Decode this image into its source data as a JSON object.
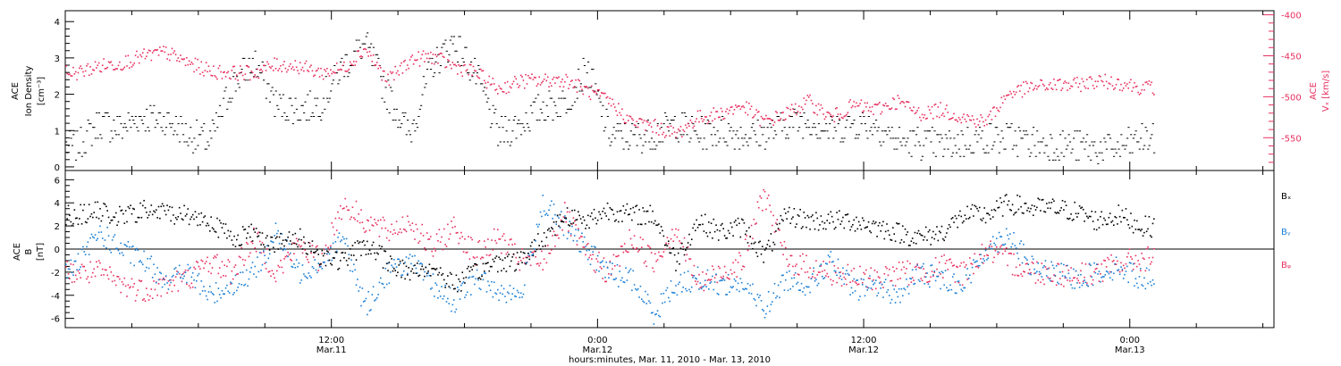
{
  "colors": {
    "density": "#000000",
    "speed": "#e8305f",
    "bx": "#000000",
    "by": "#1a7fd6",
    "bz": "#e8305f",
    "frame": "#000000",
    "background": "#ffffff"
  },
  "x_axis": {
    "label": "hours:minutes, Mar. 11, 2010 - Mar. 13, 2010",
    "ticks": [
      {
        "hours": 12,
        "time": "12:00",
        "date": "Mar.11"
      },
      {
        "hours": 24,
        "time": "0:00",
        "date": "Mar.12"
      },
      {
        "hours": 36,
        "time": "12:00",
        "date": "Mar.12"
      },
      {
        "hours": 48,
        "time": "0:00",
        "date": "Mar.13"
      }
    ]
  },
  "top_panel": {
    "left_label": [
      "ACE",
      "Ion Density",
      "[cm⁻³]"
    ],
    "right_label": [
      "ACE",
      "Vₓ [km/s]"
    ]
  },
  "bottom_panel": {
    "left_label": [
      "ACE",
      "B",
      "[nT]"
    ],
    "legend": [
      "Bₓ",
      "Bᵧ",
      "Bᵩ"
    ]
  },
  "chart_data": [
    {
      "type": "scatter",
      "title": "",
      "xlabel": "hours:minutes, Mar. 11, 2010 - Mar. 13, 2010",
      "xlim": [
        0,
        54.5
      ],
      "xticks": [
        12,
        24,
        36,
        48
      ],
      "ylabel": "ACE Ion Density [cm-3]",
      "ylim": [
        -0.1,
        4.3
      ],
      "yticks": [
        0,
        1,
        2,
        3,
        4
      ],
      "y2label": "ACE Vx [km/s]",
      "y2lim": [
        -590,
        -395
      ],
      "y2ticks": [
        -400,
        -450,
        -500,
        -550
      ],
      "grid": false,
      "series": [
        {
          "name": "",
          "axis": "left",
          "color": "#000000",
          "x": [
            0.5,
            1.5,
            2.5,
            3.5,
            4.5,
            5.5,
            6.5,
            7.5,
            8.5,
            9.5,
            10.5,
            11.5,
            12.5,
            13.5,
            14.5,
            15.5,
            16.5,
            17.5,
            18.5,
            19.5,
            20.5,
            21.5,
            22.5,
            23.5,
            24.5,
            25.5,
            26.5,
            27.5,
            28.5,
            29.5,
            30.5,
            31.5,
            32.5,
            33.5,
            34.5,
            35.5,
            36.5,
            37.5,
            38.5,
            39.5,
            40.5,
            41.5,
            42.5,
            43.5,
            44.5,
            45.5,
            46.5,
            47.5,
            48.5
          ],
          "y": [
            0.6,
            1.2,
            1.1,
            1.4,
            1.3,
            0.9,
            0.7,
            2.3,
            2.9,
            1.7,
            1.6,
            1.8,
            2.8,
            3.4,
            2.0,
            0.9,
            2.8,
            3.5,
            2.5,
            0.9,
            1.2,
            1.7,
            1.8,
            2.7,
            0.9,
            0.8,
            0.9,
            1.2,
            0.9,
            1.0,
            0.9,
            0.9,
            1.2,
            1.3,
            1.0,
            1.2,
            1.2,
            0.7,
            0.7,
            0.6,
            0.7,
            0.8,
            0.8,
            0.7,
            0.6,
            0.6,
            0.5,
            0.5,
            0.8
          ]
        },
        {
          "name": "",
          "axis": "right",
          "color": "#e8305f",
          "x": [
            0.5,
            1.5,
            2.5,
            3.5,
            4.5,
            5.5,
            6.5,
            7.5,
            8.5,
            9.5,
            10.5,
            11.5,
            12.5,
            13.5,
            14.5,
            15.5,
            16.5,
            17.5,
            18.5,
            19.5,
            20.5,
            21.5,
            22.5,
            23.5,
            24.5,
            25.5,
            26.5,
            27.5,
            28.5,
            29.5,
            30.5,
            31.5,
            32.5,
            33.5,
            34.5,
            35.5,
            36.5,
            37.5,
            38.5,
            39.5,
            40.5,
            41.5,
            42.5,
            43.5,
            44.5,
            45.5,
            46.5,
            47.5,
            48.5
          ],
          "y": [
            -470,
            -462,
            -458,
            -450,
            -445,
            -458,
            -468,
            -470,
            -470,
            -460,
            -462,
            -470,
            -465,
            -440,
            -480,
            -455,
            -450,
            -462,
            -470,
            -490,
            -480,
            -480,
            -478,
            -492,
            -505,
            -530,
            -535,
            -545,
            -525,
            -520,
            -510,
            -530,
            -520,
            -505,
            -525,
            -510,
            -515,
            -505,
            -520,
            -515,
            -525,
            -530,
            -495,
            -488,
            -485,
            -485,
            -480,
            -482,
            -488
          ]
        }
      ]
    },
    {
      "type": "scatter",
      "title": "",
      "xlabel": "hours:minutes, Mar. 11, 2010 - Mar. 13, 2010",
      "xlim": [
        0,
        54.5
      ],
      "xticks": [
        12,
        24,
        36,
        48
      ],
      "ylabel": "ACE B [nT]",
      "ylim": [
        -6.8,
        6.8
      ],
      "yticks": [
        -6,
        -4,
        -2,
        0,
        2,
        4,
        6
      ],
      "grid": false,
      "legend_position": "right",
      "series": [
        {
          "name": "Bx",
          "color": "#000000",
          "x": [
            0.5,
            1.5,
            2.5,
            3.5,
            4.5,
            5.5,
            6.5,
            7.5,
            8.5,
            9.5,
            10.5,
            11.5,
            12.5,
            13.5,
            14.5,
            15.5,
            16.5,
            17.5,
            18.5,
            19.5,
            20.5,
            21.5,
            22.5,
            23.5,
            24.5,
            25.5,
            26.5,
            27.5,
            28.5,
            29.5,
            30.5,
            31.5,
            32.5,
            33.5,
            34.5,
            35.5,
            36.5,
            37.5,
            38.5,
            39.5,
            40.5,
            41.5,
            42.5,
            43.5,
            44.5,
            45.5,
            46.5,
            47.5,
            48.5
          ],
          "y": [
            3.0,
            3.3,
            2.8,
            3.4,
            3.2,
            3.0,
            2.5,
            1.0,
            1.5,
            0.5,
            1.0,
            -0.5,
            -1.0,
            0.5,
            -1.0,
            -2.0,
            -1.5,
            -3.0,
            -2.0,
            -1.0,
            -1.0,
            1.0,
            3.0,
            2.5,
            3.5,
            3.0,
            3.0,
            -1.0,
            2.5,
            1.5,
            2.0,
            -0.5,
            3.0,
            2.5,
            2.5,
            2.5,
            2.0,
            1.5,
            1.0,
            1.5,
            3.0,
            3.0,
            4.0,
            3.6,
            3.6,
            3.3,
            2.5,
            3.0,
            2.0
          ]
        },
        {
          "name": "By",
          "color": "#1a7fd6",
          "x": [
            0.5,
            1.5,
            2.5,
            3.5,
            4.5,
            5.5,
            6.5,
            7.5,
            8.5,
            9.5,
            10.5,
            11.5,
            12.5,
            13.5,
            14.5,
            15.5,
            16.5,
            17.5,
            18.5,
            19.5,
            20.5,
            21.5,
            22.5,
            23.5,
            24.5,
            25.5,
            26.5,
            27.5,
            28.5,
            29.5,
            30.5,
            31.5,
            32.5,
            33.5,
            34.5,
            35.5,
            36.5,
            37.5,
            38.5,
            39.5,
            40.5,
            41.5,
            42.5,
            43.5,
            44.5,
            45.5,
            46.5,
            47.5,
            48.5
          ],
          "y": [
            -1.5,
            1.5,
            0.0,
            -1.0,
            -2.5,
            -2.0,
            -4.0,
            -3.0,
            -2.0,
            1.5,
            -2.0,
            -1.0,
            1.0,
            -5.0,
            -2.0,
            -1.0,
            -3.0,
            -4.5,
            -2.5,
            -3.5,
            -4.0,
            4.0,
            2.0,
            0.0,
            -2.0,
            -2.5,
            -5.5,
            -3.0,
            -2.5,
            -3.0,
            -3.0,
            -5.0,
            -2.5,
            -3.0,
            -1.0,
            -3.5,
            -3.0,
            -4.0,
            -2.0,
            -2.5,
            -3.0,
            0.0,
            1.5,
            -1.5,
            -2.0,
            -2.5,
            -2.0,
            -1.5,
            -2.5
          ]
        },
        {
          "name": "Bz",
          "color": "#e8305f",
          "x": [
            0.5,
            1.5,
            2.5,
            3.5,
            4.5,
            5.5,
            6.5,
            7.5,
            8.5,
            9.5,
            10.5,
            11.5,
            12.5,
            13.5,
            14.5,
            15.5,
            16.5,
            17.5,
            18.5,
            19.5,
            20.5,
            21.5,
            22.5,
            23.5,
            24.5,
            25.5,
            26.5,
            27.5,
            28.5,
            29.5,
            30.5,
            31.5,
            32.5,
            33.5,
            34.5,
            35.5,
            36.5,
            37.5,
            38.5,
            39.5,
            40.5,
            41.5,
            42.5,
            43.5,
            44.5,
            45.5,
            46.5,
            47.5,
            48.5
          ],
          "y": [
            -2.0,
            -2.0,
            -3.0,
            -3.5,
            -3.0,
            -2.5,
            -1.0,
            -2.0,
            1.0,
            -2.0,
            0.5,
            -1.0,
            4.0,
            2.5,
            1.5,
            2.5,
            0.0,
            2.0,
            -0.5,
            1.0,
            -1.0,
            -1.0,
            3.0,
            -0.5,
            -2.0,
            1.0,
            -1.0,
            2.0,
            -3.0,
            -2.0,
            -1.0,
            5.0,
            -1.0,
            -1.5,
            -2.0,
            -2.5,
            -2.5,
            -2.0,
            -2.0,
            -1.5,
            -2.0,
            0.0,
            -1.0,
            -1.8,
            -2.0,
            -2.2,
            -2.0,
            -1.2,
            -0.8
          ]
        }
      ]
    }
  ]
}
